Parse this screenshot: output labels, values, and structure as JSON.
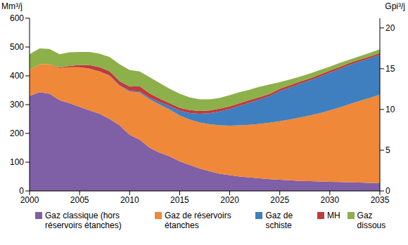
{
  "chart_data": {
    "type": "area",
    "stacked": true,
    "grid": false,
    "legend": "bottom",
    "ylabel": "Mm³/j",
    "y2label": "Gpi³/j",
    "x": [
      2000,
      2001,
      2002,
      2003,
      2004,
      2005,
      2006,
      2007,
      2008,
      2009,
      2010,
      2011,
      2012,
      2013,
      2014,
      2015,
      2016,
      2017,
      2018,
      2019,
      2020,
      2021,
      2022,
      2023,
      2024,
      2025,
      2026,
      2027,
      2028,
      2029,
      2030,
      2031,
      2032,
      2033,
      2034,
      2035
    ],
    "xlim": [
      2000,
      2035
    ],
    "xticks": [
      2000,
      2005,
      2010,
      2015,
      2020,
      2025,
      2030,
      2035
    ],
    "ylim": [
      0,
      600
    ],
    "yticks": [
      0,
      100,
      200,
      300,
      400,
      500,
      600
    ],
    "y2lim": [
      0,
      21.19
    ],
    "y2ticks": [
      0,
      5,
      10,
      15,
      20
    ],
    "series": [
      {
        "name": "Gaz classique (hors réservoirs étanches)",
        "color": "#7f5fa5",
        "values": [
          330,
          343,
          338,
          315,
          305,
          292,
          280,
          268,
          250,
          228,
          195,
          178,
          150,
          133,
          120,
          103,
          90,
          78,
          68,
          60,
          55,
          50,
          47,
          44,
          41,
          39,
          37,
          35,
          34,
          33,
          32,
          31,
          30,
          29,
          28,
          27
        ]
      },
      {
        "name": "Gaz de réservoirs étanches",
        "color": "#f0883a",
        "values": [
          90,
          97,
          102,
          112,
          125,
          138,
          145,
          147,
          150,
          137,
          150,
          164,
          168,
          167,
          163,
          159,
          158,
          160,
          164,
          168,
          172,
          178,
          183,
          189,
          196,
          203,
          211,
          220,
          228,
          237,
          248,
          259,
          272,
          284,
          295,
          308
        ]
      },
      {
        "name": "Gaz de schiste",
        "color": "#3f7fbf",
        "values": [
          0,
          0,
          0,
          0,
          0,
          0,
          0,
          0,
          1,
          2,
          3,
          4,
          6,
          9,
          12,
          17,
          23,
          30,
          38,
          48,
          58,
          68,
          77,
          85,
          92,
          105,
          111,
          117,
          122,
          127,
          131,
          134,
          136,
          137,
          138,
          138
        ]
      },
      {
        "name": "MH",
        "color": "#c0393b",
        "values": [
          0,
          0,
          0,
          2,
          4,
          8,
          12,
          15,
          15,
          14,
          15,
          18,
          15,
          12,
          10,
          10,
          10,
          10,
          10,
          10,
          9,
          9,
          9,
          8,
          8,
          8,
          8,
          8,
          7,
          7,
          7,
          7,
          7,
          7,
          6,
          6
        ]
      },
      {
        "name": "Gaz dissous",
        "color": "#8db04a",
        "values": [
          55,
          55,
          53,
          46,
          48,
          45,
          46,
          47,
          49,
          59,
          57,
          51,
          56,
          54,
          50,
          49,
          44,
          40,
          38,
          37,
          39,
          38,
          36,
          36,
          33,
          23,
          20,
          17,
          17,
          16,
          14,
          14,
          12,
          11,
          13,
          13
        ]
      }
    ]
  }
}
